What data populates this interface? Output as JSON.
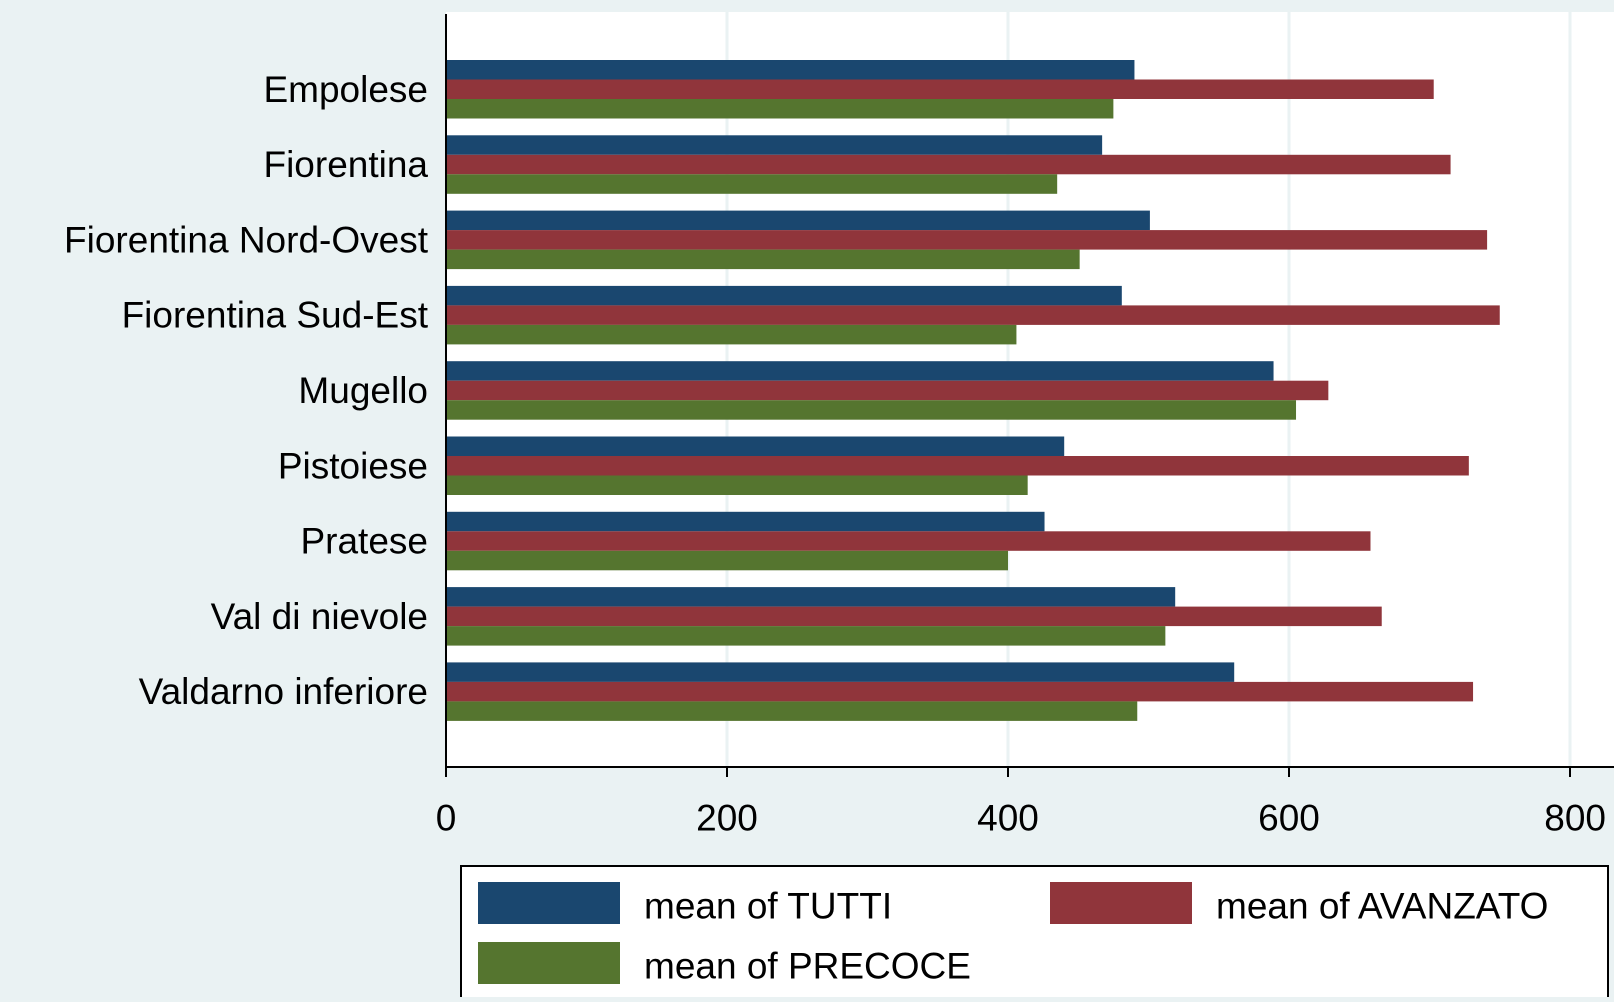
{
  "chart_data": {
    "type": "bar",
    "orientation": "horizontal",
    "title": "",
    "xlabel": "",
    "ylabel": "",
    "categories": [
      "Empolese",
      "Fiorentina",
      "Fiorentina Nord-Ovest",
      "Fiorentina Sud-Est",
      "Mugello",
      "Pistoiese",
      "Pratese",
      "Val di nievole",
      "Valdarno inferiore"
    ],
    "series": [
      {
        "name": "mean of TUTTI",
        "color": "#1a476f",
        "values": [
          490,
          467,
          501,
          481,
          589,
          440,
          426,
          519,
          561
        ]
      },
      {
        "name": "mean of AVANZATO",
        "color": "#90353b",
        "values": [
          703,
          715,
          741,
          750,
          628,
          728,
          658,
          666,
          731
        ]
      },
      {
        "name": "mean of PRECOCE",
        "color": "#55752f",
        "values": [
          475,
          435,
          451,
          406,
          605,
          414,
          400,
          512,
          492
        ]
      }
    ],
    "xlim": [
      0,
      810
    ],
    "xticks": [
      0,
      200,
      400,
      600,
      800
    ],
    "grid": true,
    "legend_position": "bottom"
  }
}
